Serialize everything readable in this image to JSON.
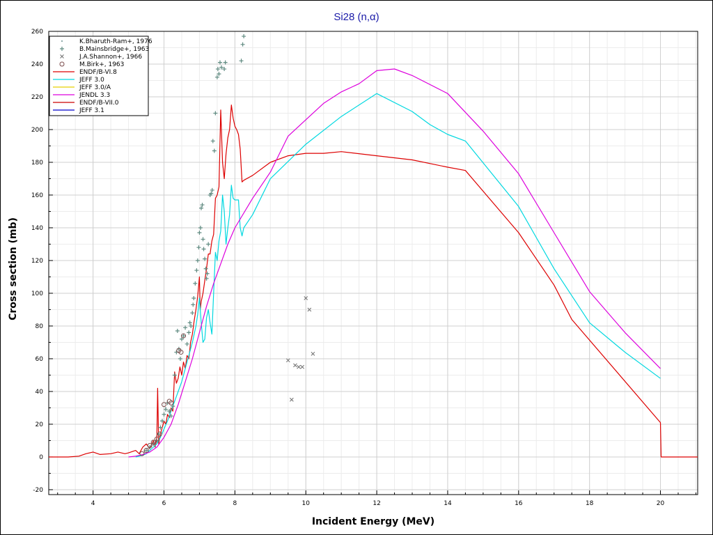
{
  "chart_data": {
    "type": "line",
    "title": "Si28 (n,α)",
    "xlabel": "Incident Energy (MeV)",
    "ylabel": "Cross section (mb)",
    "xlim": [
      2.75,
      21.05
    ],
    "ylim": [
      -23,
      260
    ],
    "x_ticks": [
      4,
      6,
      8,
      10,
      12,
      14,
      16,
      18,
      20
    ],
    "y_ticks": [
      -20,
      0,
      20,
      40,
      60,
      80,
      100,
      120,
      140,
      160,
      180,
      200,
      220,
      240,
      260
    ],
    "grid": true,
    "legend_position": "top-left",
    "scatter_series": [
      {
        "name": "K.Bharuth-Ram+, 1976",
        "marker": "dot",
        "color": "#6b8f8f",
        "points": [
          [
            5.45,
            3
          ],
          [
            5.55,
            5
          ],
          [
            5.65,
            7
          ],
          [
            5.75,
            9
          ],
          [
            5.85,
            14
          ],
          [
            5.95,
            22
          ],
          [
            6.05,
            30
          ],
          [
            6.15,
            27
          ]
        ]
      },
      {
        "name": "B.Mainsbridge+, 1963",
        "marker": "plus",
        "color": "#5f8a80",
        "points": [
          [
            5.5,
            4
          ],
          [
            5.6,
            6
          ],
          [
            5.7,
            8
          ],
          [
            5.8,
            10
          ],
          [
            5.85,
            14
          ],
          [
            5.9,
            18
          ],
          [
            5.95,
            22
          ],
          [
            6.0,
            26
          ],
          [
            6.05,
            29
          ],
          [
            6.1,
            33
          ],
          [
            6.15,
            28
          ],
          [
            6.2,
            25
          ],
          [
            6.25,
            31
          ],
          [
            6.3,
            50
          ],
          [
            6.35,
            64
          ],
          [
            6.38,
            77
          ],
          [
            6.42,
            66
          ],
          [
            6.46,
            60
          ],
          [
            6.5,
            72
          ],
          [
            6.55,
            74
          ],
          [
            6.6,
            79
          ],
          [
            6.65,
            69
          ],
          [
            6.7,
            76
          ],
          [
            6.73,
            82
          ],
          [
            6.76,
            80
          ],
          [
            6.8,
            88
          ],
          [
            6.82,
            93
          ],
          [
            6.84,
            97
          ],
          [
            6.88,
            106
          ],
          [
            6.92,
            114
          ],
          [
            6.95,
            120
          ],
          [
            6.98,
            128
          ],
          [
            7.0,
            137
          ],
          [
            7.03,
            140
          ],
          [
            7.05,
            152
          ],
          [
            7.08,
            154
          ],
          [
            7.1,
            133
          ],
          [
            7.12,
            127
          ],
          [
            7.15,
            121
          ],
          [
            7.18,
            115
          ],
          [
            7.2,
            109
          ],
          [
            7.22,
            112
          ],
          [
            7.25,
            130
          ],
          [
            7.3,
            160
          ],
          [
            7.33,
            161
          ],
          [
            7.36,
            163
          ],
          [
            7.38,
            193
          ],
          [
            7.42,
            187
          ],
          [
            7.45,
            210
          ],
          [
            7.5,
            232
          ],
          [
            7.52,
            237
          ],
          [
            7.55,
            234
          ],
          [
            7.58,
            241
          ],
          [
            7.62,
            238
          ],
          [
            7.7,
            237
          ],
          [
            7.73,
            241
          ],
          [
            8.18,
            242
          ],
          [
            8.22,
            252
          ],
          [
            8.25,
            257
          ]
        ]
      },
      {
        "name": "J.A.Shannon+, 1966",
        "marker": "cross",
        "color": "#707070",
        "points": [
          [
            9.5,
            59
          ],
          [
            9.6,
            35
          ],
          [
            9.7,
            56
          ],
          [
            9.8,
            55
          ],
          [
            9.9,
            55
          ],
          [
            10.0,
            97
          ],
          [
            10.1,
            90
          ],
          [
            10.2,
            63
          ]
        ]
      },
      {
        "name": "M.Birk+, 1963",
        "marker": "circle",
        "color": "#7a4a4a",
        "points": [
          [
            5.38,
            2
          ],
          [
            5.5,
            4
          ],
          [
            5.6,
            7
          ],
          [
            5.7,
            9
          ],
          [
            5.8,
            11
          ],
          [
            5.88,
            14
          ],
          [
            6.0,
            32
          ],
          [
            6.15,
            34
          ],
          [
            6.2,
            33
          ],
          [
            6.42,
            65
          ],
          [
            6.48,
            64
          ],
          [
            6.55,
            74
          ]
        ]
      }
    ],
    "line_series": [
      {
        "name": "ENDF/B-VI.8",
        "color": "#dd0000",
        "points": [
          [
            2.75,
            0
          ],
          [
            3.3,
            0
          ],
          [
            3.6,
            0.5
          ],
          [
            3.8,
            2
          ],
          [
            4.0,
            3
          ],
          [
            4.2,
            1.5
          ],
          [
            4.5,
            2
          ],
          [
            4.7,
            3
          ],
          [
            4.9,
            2
          ],
          [
            5.0,
            2.5
          ],
          [
            5.2,
            4
          ],
          [
            5.3,
            2
          ],
          [
            5.4,
            6
          ],
          [
            5.5,
            8
          ],
          [
            5.6,
            5
          ],
          [
            5.7,
            10
          ],
          [
            5.75,
            6
          ],
          [
            5.8,
            12
          ],
          [
            5.82,
            42
          ],
          [
            5.85,
            8
          ],
          [
            5.9,
            14
          ],
          [
            5.95,
            18
          ],
          [
            6.0,
            22
          ],
          [
            6.05,
            20
          ],
          [
            6.1,
            26
          ],
          [
            6.15,
            24
          ],
          [
            6.2,
            30
          ],
          [
            6.25,
            28
          ],
          [
            6.3,
            52
          ],
          [
            6.35,
            45
          ],
          [
            6.4,
            48
          ],
          [
            6.45,
            55
          ],
          [
            6.5,
            50
          ],
          [
            6.55,
            58
          ],
          [
            6.6,
            54
          ],
          [
            6.65,
            62
          ],
          [
            6.7,
            60
          ],
          [
            6.75,
            70
          ],
          [
            6.8,
            75
          ],
          [
            6.85,
            83
          ],
          [
            6.9,
            90
          ],
          [
            6.95,
            98
          ],
          [
            7.0,
            110
          ],
          [
            7.02,
            90
          ],
          [
            7.05,
            95
          ],
          [
            7.1,
            100
          ],
          [
            7.2,
            115
          ],
          [
            7.25,
            124
          ],
          [
            7.3,
            124
          ],
          [
            7.35,
            132
          ],
          [
            7.4,
            136
          ],
          [
            7.45,
            158
          ],
          [
            7.5,
            160
          ],
          [
            7.55,
            165
          ],
          [
            7.6,
            212
          ],
          [
            7.65,
            180
          ],
          [
            7.7,
            170
          ],
          [
            7.75,
            185
          ],
          [
            7.8,
            195
          ],
          [
            7.85,
            200
          ],
          [
            7.9,
            215
          ],
          [
            7.95,
            207
          ],
          [
            8.0,
            202
          ],
          [
            8.05,
            200
          ],
          [
            8.1,
            197
          ],
          [
            8.15,
            188
          ],
          [
            8.2,
            168
          ],
          [
            8.25,
            169
          ],
          [
            8.5,
            172
          ],
          [
            9.0,
            180
          ],
          [
            9.5,
            184
          ],
          [
            10.0,
            185.5
          ],
          [
            10.5,
            185.5
          ],
          [
            11.0,
            186.5
          ],
          [
            12.0,
            184
          ],
          [
            13.0,
            181.5
          ],
          [
            14.0,
            177
          ],
          [
            14.5,
            175
          ],
          [
            16.0,
            137
          ],
          [
            17.0,
            105
          ],
          [
            17.5,
            84
          ],
          [
            20.0,
            21
          ],
          [
            20.02,
            0
          ],
          [
            21.05,
            0
          ]
        ]
      },
      {
        "name": "JEFF 3.0",
        "color": "#00d8e0",
        "points": [
          [
            5.2,
            0
          ],
          [
            5.4,
            1
          ],
          [
            5.5,
            2
          ],
          [
            5.6,
            4
          ],
          [
            5.7,
            6
          ],
          [
            5.8,
            8
          ],
          [
            5.9,
            12
          ],
          [
            6.0,
            17
          ],
          [
            6.1,
            22
          ],
          [
            6.2,
            28
          ],
          [
            6.3,
            34
          ],
          [
            6.4,
            40
          ],
          [
            6.5,
            46
          ],
          [
            6.6,
            54
          ],
          [
            6.7,
            62
          ],
          [
            6.8,
            70
          ],
          [
            6.9,
            80
          ],
          [
            6.95,
            87
          ],
          [
            7.0,
            97
          ],
          [
            7.05,
            82
          ],
          [
            7.1,
            70
          ],
          [
            7.15,
            72
          ],
          [
            7.2,
            85
          ],
          [
            7.25,
            90
          ],
          [
            7.3,
            82
          ],
          [
            7.35,
            75
          ],
          [
            7.4,
            100
          ],
          [
            7.45,
            125
          ],
          [
            7.5,
            120
          ],
          [
            7.55,
            132
          ],
          [
            7.6,
            138
          ],
          [
            7.65,
            160
          ],
          [
            7.7,
            150
          ],
          [
            7.75,
            130
          ],
          [
            7.8,
            140
          ],
          [
            7.85,
            148
          ],
          [
            7.9,
            166
          ],
          [
            7.95,
            158
          ],
          [
            8.0,
            157
          ],
          [
            8.1,
            157
          ],
          [
            8.15,
            140
          ],
          [
            8.2,
            135
          ],
          [
            8.25,
            140
          ],
          [
            8.5,
            148
          ],
          [
            9.0,
            170
          ],
          [
            10.0,
            191
          ],
          [
            11.0,
            208
          ],
          [
            12.0,
            222
          ],
          [
            13.0,
            211
          ],
          [
            13.5,
            203
          ],
          [
            14.0,
            197
          ],
          [
            14.5,
            193
          ],
          [
            16.0,
            153
          ],
          [
            17.0,
            115
          ],
          [
            18.0,
            82
          ],
          [
            19.0,
            64
          ],
          [
            20.0,
            48
          ]
        ]
      },
      {
        "name": "JEFF 3.0/A",
        "color": "#e8d000",
        "points": []
      },
      {
        "name": "JENDL 3.3",
        "color": "#dd00dd",
        "points": [
          [
            5.0,
            0
          ],
          [
            5.2,
            0.5
          ],
          [
            5.4,
            1.5
          ],
          [
            5.6,
            3
          ],
          [
            5.8,
            6
          ],
          [
            6.0,
            12
          ],
          [
            6.2,
            20
          ],
          [
            6.4,
            32
          ],
          [
            6.6,
            46
          ],
          [
            6.8,
            60
          ],
          [
            7.0,
            76
          ],
          [
            7.2,
            92
          ],
          [
            7.4,
            106
          ],
          [
            7.6,
            118
          ],
          [
            7.8,
            130
          ],
          [
            8.0,
            140
          ],
          [
            8.5,
            158
          ],
          [
            9.0,
            174
          ],
          [
            9.5,
            196
          ],
          [
            10.0,
            206
          ],
          [
            10.5,
            216
          ],
          [
            11.0,
            223
          ],
          [
            11.5,
            228
          ],
          [
            12.0,
            236
          ],
          [
            12.5,
            237
          ],
          [
            13.0,
            233
          ],
          [
            14.0,
            222
          ],
          [
            15.0,
            199
          ],
          [
            16.0,
            173
          ],
          [
            17.0,
            137
          ],
          [
            18.0,
            101
          ],
          [
            19.0,
            76
          ],
          [
            20.0,
            54
          ]
        ]
      },
      {
        "name": "ENDF/B-VII.0",
        "color": "#cc0000",
        "points": []
      },
      {
        "name": "JEFF 3.1",
        "color": "#0000cc",
        "points": []
      }
    ]
  }
}
